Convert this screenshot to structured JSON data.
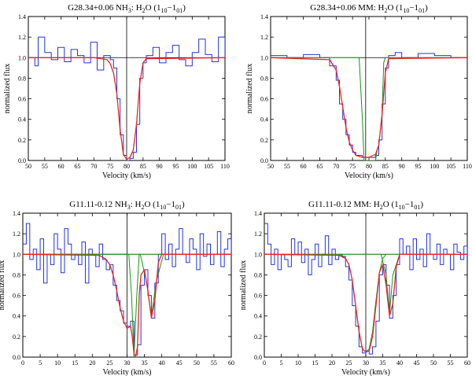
{
  "chart_data": [
    {
      "type": "line",
      "title": {
        "pre": "G28.34+0.06 NH",
        "sub1": "3",
        "mid": ":  H",
        "sub2": "2",
        "post": "O (1",
        "sub3": "10",
        "dash": "−1",
        "sub4": "01",
        "close": ")"
      },
      "xlabel": "Velocity (km/s)",
      "ylabel": "normalized flux",
      "xlim": [
        50,
        110
      ],
      "ylim": [
        0,
        1.4
      ],
      "xticks": [
        "50",
        "55",
        "60",
        "65",
        "70",
        "75",
        "80",
        "85",
        "90",
        "95",
        "100",
        "105",
        "110"
      ],
      "yticks": [
        "0.0",
        "0.2",
        "0.4",
        "0.6",
        "0.8",
        "1.0",
        "1.2",
        "1.4"
      ],
      "vline": 80,
      "colors": {
        "data": "#2233dd",
        "fit": "#ee2222",
        "component": "#119911",
        "reference": "#000000"
      },
      "series": [
        {
          "role": "data",
          "x": [
            50,
            52,
            53,
            55,
            57,
            59,
            61,
            63,
            65,
            67,
            69,
            71,
            73,
            75,
            76,
            77,
            78,
            79,
            80,
            81,
            82,
            83,
            84,
            85,
            86,
            88,
            90,
            92,
            94,
            96,
            98,
            100,
            102,
            104,
            106,
            108,
            110
          ],
          "y": [
            1.0,
            0.92,
            1.2,
            1.05,
            0.98,
            1.1,
            0.96,
            1.08,
            1.02,
            0.95,
            1.15,
            0.88,
            1.02,
            0.98,
            0.9,
            0.6,
            0.25,
            0.05,
            0.0,
            0.02,
            0.08,
            0.35,
            0.8,
            0.95,
            1.02,
            1.1,
            0.95,
            1.05,
            1.12,
            0.98,
            0.92,
            1.05,
            1.18,
            1.03,
            0.96,
            1.2,
            1.0
          ]
        },
        {
          "role": "fit",
          "x": [
            50,
            70,
            74,
            75,
            76,
            77,
            78,
            79,
            80,
            81,
            82,
            83,
            84,
            85,
            86,
            110
          ],
          "y": [
            1.0,
            1.0,
            0.98,
            0.94,
            0.85,
            0.65,
            0.3,
            0.06,
            0.01,
            0.03,
            0.1,
            0.35,
            0.75,
            0.95,
            0.99,
            1.0
          ]
        }
      ]
    },
    {
      "type": "line",
      "title": {
        "pre": "G28.34+0.06 MM:  H",
        "sub2": "2",
        "post": "O (1",
        "sub3": "10",
        "dash": "−1",
        "sub4": "01",
        "close": ")"
      },
      "xlabel": "Velocity (km/s)",
      "ylabel": "normalized flux",
      "xlim": [
        50,
        110
      ],
      "ylim": [
        0,
        1.4
      ],
      "xticks": [
        "50",
        "55",
        "60",
        "65",
        "70",
        "75",
        "80",
        "85",
        "90",
        "95",
        "100",
        "105",
        "110"
      ],
      "yticks": [
        "0.0",
        "0.2",
        "0.4",
        "0.6",
        "0.8",
        "1.0",
        "1.2",
        "1.4"
      ],
      "vline": 79,
      "colors": {
        "data": "#2233dd",
        "fit": "#ee2222",
        "component": "#119911",
        "reference": "#000000"
      },
      "series": [
        {
          "role": "data",
          "x": [
            50,
            55,
            60,
            65,
            68,
            70,
            71,
            72,
            73,
            74,
            75,
            76,
            78,
            80,
            82,
            83,
            84,
            85,
            86,
            88,
            90,
            95,
            100,
            105,
            110
          ],
          "y": [
            1.02,
            1.0,
            1.03,
            1.0,
            0.92,
            0.78,
            0.55,
            0.4,
            0.25,
            0.15,
            0.08,
            0.05,
            0.03,
            0.03,
            0.05,
            0.2,
            0.55,
            0.9,
            1.02,
            1.05,
            1.0,
            1.04,
            1.02,
            1.0,
            1.0
          ]
        },
        {
          "role": "fit",
          "x": [
            50,
            68,
            70,
            71,
            72,
            73,
            74,
            75,
            76,
            78,
            80,
            82,
            83,
            84,
            85,
            86,
            110
          ],
          "y": [
            1.0,
            0.98,
            0.88,
            0.72,
            0.52,
            0.32,
            0.18,
            0.1,
            0.05,
            0.03,
            0.03,
            0.06,
            0.15,
            0.45,
            0.85,
            0.99,
            1.0
          ]
        },
        {
          "role": "component",
          "x": [
            50,
            77,
            78,
            78.5,
            79,
            80,
            82,
            82.5,
            83,
            84,
            84.5,
            85,
            110
          ],
          "y": [
            1.0,
            1.0,
            0.4,
            0.0,
            0.0,
            0.0,
            0.0,
            0.1,
            0.15,
            0.45,
            0.95,
            1.0,
            1.0
          ]
        }
      ]
    },
    {
      "type": "line",
      "title": {
        "pre": "G11.11-0.12 NH",
        "sub1": "3",
        "mid": ":  H",
        "sub2": "2",
        "post": "O (1",
        "sub3": "10",
        "dash": "−1",
        "sub4": "01",
        "close": ")"
      },
      "xlabel": "Velocity (km/s)",
      "ylabel": "normalized flux",
      "xlim": [
        0,
        60
      ],
      "ylim": [
        0,
        1.4
      ],
      "xticks": [
        "0",
        "5",
        "10",
        "15",
        "20",
        "25",
        "30",
        "35",
        "40",
        "45",
        "50",
        "55",
        "60"
      ],
      "yticks": [
        "0.0",
        "0.2",
        "0.4",
        "0.6",
        "0.8",
        "1.0",
        "1.2",
        "1.4"
      ],
      "vline": 30,
      "colors": {
        "data": "#2233dd",
        "fit": "#ee2222",
        "component": "#119911",
        "reference": "#000000"
      },
      "series": [
        {
          "role": "data",
          "x": [
            0,
            1,
            2,
            3,
            4,
            5,
            6,
            7,
            8,
            9,
            10,
            11,
            12,
            13,
            14,
            15,
            16,
            17,
            18,
            19,
            20,
            21,
            22,
            23,
            24,
            25,
            26,
            27,
            28,
            29,
            30,
            31,
            32,
            33,
            34,
            35,
            36,
            37,
            38,
            39,
            40,
            41,
            42,
            43,
            44,
            45,
            46,
            47,
            48,
            49,
            50,
            51,
            52,
            53,
            54,
            55,
            56,
            57,
            58,
            59,
            60
          ],
          "y": [
            1.1,
            1.3,
            0.95,
            1.05,
            0.85,
            1.15,
            0.72,
            1.0,
            0.9,
            1.2,
            1.05,
            0.82,
            1.25,
            1.1,
            0.95,
            1.0,
            0.9,
            1.12,
            0.72,
            1.05,
            1.0,
            0.88,
            1.1,
            0.95,
            0.85,
            0.9,
            0.7,
            0.55,
            0.45,
            0.33,
            0.3,
            0.35,
            0.02,
            0.12,
            0.7,
            0.85,
            0.6,
            0.38,
            0.72,
            1.0,
            1.2,
            0.95,
            1.1,
            0.88,
            1.05,
            1.25,
            1.0,
            0.92,
            1.15,
            1.05,
            0.85,
            1.2,
            0.98,
            1.1,
            0.9,
            1.0,
            1.22,
            0.88,
            1.05,
            1.15,
            1.0
          ]
        },
        {
          "role": "fit",
          "x": [
            0,
            22,
            24,
            25,
            26,
            27,
            28,
            29,
            30,
            31,
            31.5,
            32,
            32.5,
            33,
            33.5,
            34,
            35,
            36,
            37,
            38,
            39,
            40,
            60
          ],
          "y": [
            1.0,
            0.99,
            0.95,
            0.9,
            0.8,
            0.65,
            0.48,
            0.35,
            0.28,
            0.3,
            0.2,
            0.03,
            0.01,
            0.1,
            0.6,
            0.8,
            0.85,
            0.65,
            0.38,
            0.55,
            0.92,
            1.0,
            1.0
          ]
        },
        {
          "role": "component",
          "x": [
            0,
            30.5,
            31.3,
            32,
            32.8,
            33.5,
            60
          ],
          "y": [
            1.0,
            1.0,
            0.6,
            0.0,
            0.6,
            1.0,
            1.0
          ]
        },
        {
          "role": "component",
          "x": [
            0,
            33.8,
            35.5,
            37,
            38.5,
            40.5,
            60
          ],
          "y": [
            1.0,
            1.0,
            0.75,
            0.4,
            0.75,
            1.0,
            1.0
          ]
        }
      ]
    },
    {
      "type": "line",
      "title": {
        "pre": "G11.11-0.12 MM:  H",
        "sub2": "2",
        "post": "O (1",
        "sub3": "10",
        "dash": "−1",
        "sub4": "01",
        "close": ")"
      },
      "xlabel": "Velocity (km/s)",
      "ylabel": "normalized flux",
      "xlim": [
        0,
        60
      ],
      "ylim": [
        0,
        1.4
      ],
      "xticks": [
        "0",
        "5",
        "10",
        "15",
        "20",
        "25",
        "30",
        "35",
        "40",
        "45",
        "50",
        "55",
        "60"
      ],
      "yticks": [
        "0.0",
        "0.2",
        "0.4",
        "0.6",
        "0.8",
        "1.0",
        "1.2",
        "1.4"
      ],
      "vline": 30,
      "colors": {
        "data": "#2233dd",
        "fit": "#ee2222",
        "component": "#119911",
        "reference": "#000000"
      },
      "series": [
        {
          "role": "data",
          "x": [
            0,
            1,
            2,
            3,
            4,
            5,
            6,
            7,
            8,
            9,
            10,
            11,
            12,
            13,
            14,
            15,
            16,
            17,
            18,
            19,
            20,
            21,
            22,
            23,
            24,
            25,
            26,
            27,
            28,
            29,
            30,
            31,
            32,
            33,
            34,
            35,
            36,
            37,
            38,
            39,
            40,
            41,
            42,
            43,
            44,
            45,
            46,
            47,
            48,
            49,
            50,
            51,
            52,
            53,
            54,
            55,
            56,
            57,
            58,
            59,
            60
          ],
          "y": [
            1.3,
            1.1,
            0.9,
            1.05,
            0.85,
            1.0,
            0.95,
            0.88,
            1.15,
            1.0,
            1.12,
            0.92,
            1.05,
            0.8,
            0.95,
            1.1,
            0.88,
            1.0,
            1.18,
            0.9,
            1.05,
            0.95,
            1.0,
            0.98,
            0.88,
            0.75,
            0.5,
            0.3,
            0.1,
            0.04,
            0.06,
            0.03,
            0.1,
            0.35,
            0.8,
            0.9,
            0.7,
            0.38,
            0.6,
            0.9,
            1.15,
            1.0,
            1.08,
            0.85,
            1.15,
            0.95,
            1.05,
            0.88,
            1.2,
            1.0,
            0.95,
            1.1,
            0.9,
            1.05,
            1.0,
            0.85,
            1.1,
            1.02,
            0.95,
            1.08,
            1.0
          ]
        },
        {
          "role": "fit",
          "x": [
            0,
            22,
            24,
            25,
            26,
            27,
            28,
            29,
            30,
            31,
            32,
            33,
            34,
            35,
            36,
            37,
            38,
            39,
            40,
            60
          ],
          "y": [
            1.0,
            0.99,
            0.96,
            0.9,
            0.75,
            0.5,
            0.25,
            0.08,
            0.05,
            0.06,
            0.2,
            0.5,
            0.82,
            0.9,
            0.7,
            0.4,
            0.52,
            0.88,
            1.0,
            1.0
          ]
        },
        {
          "role": "component",
          "x": [
            0,
            23,
            24,
            25,
            26,
            27,
            28,
            29,
            30,
            31,
            32,
            33,
            34,
            35,
            36,
            60
          ],
          "y": [
            1.0,
            0.99,
            0.96,
            0.9,
            0.75,
            0.5,
            0.25,
            0.08,
            0.05,
            0.08,
            0.25,
            0.55,
            0.82,
            0.96,
            1.0,
            1.0
          ]
        },
        {
          "role": "component",
          "x": [
            0,
            34.5,
            36,
            37,
            38,
            40,
            60
          ],
          "y": [
            1.0,
            1.0,
            0.8,
            0.42,
            0.8,
            1.0,
            1.0
          ]
        }
      ]
    }
  ]
}
